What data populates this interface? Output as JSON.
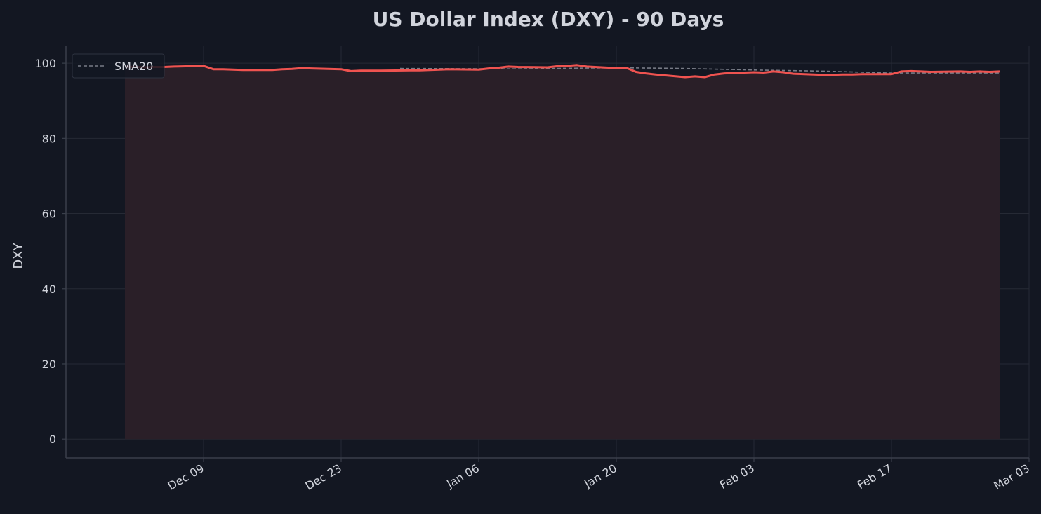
{
  "chart_data": {
    "type": "line",
    "title": "US Dollar Index (DXY) - 90 Days",
    "xlabel": "",
    "ylabel": "DXY",
    "ylim": [
      -5,
      104.5
    ],
    "yticks": [
      0,
      20,
      40,
      60,
      80,
      100
    ],
    "x_range": [
      "2024-11-25",
      "2025-03-03"
    ],
    "xticks": [
      {
        "date": "2024-12-09",
        "label": "Dec 09"
      },
      {
        "date": "2024-12-23",
        "label": "Dec 23"
      },
      {
        "date": "2025-01-06",
        "label": "Jan 06"
      },
      {
        "date": "2025-01-20",
        "label": "Jan 20"
      },
      {
        "date": "2025-02-03",
        "label": "Feb 03"
      },
      {
        "date": "2025-02-17",
        "label": "Feb 17"
      },
      {
        "date": "2025-03-03",
        "label": "Mar 03"
      }
    ],
    "grid": true,
    "legend_position": "top-left",
    "colors": {
      "background": "#131722",
      "grid": "#262a35",
      "axis": "#3a3f4b",
      "text": "#d1d4dc",
      "price_line": "#ef5350",
      "fill": "#2a1f28",
      "sma_line": "#787b86"
    },
    "series": [
      {
        "name": "",
        "style": "solid",
        "x": [
          "2024-12-01",
          "2024-12-02",
          "2024-12-03",
          "2024-12-04",
          "2024-12-05",
          "2024-12-06",
          "2024-12-09",
          "2024-12-10",
          "2024-12-11",
          "2024-12-12",
          "2024-12-13",
          "2024-12-16",
          "2024-12-17",
          "2024-12-18",
          "2024-12-19",
          "2024-12-20",
          "2024-12-23",
          "2024-12-24",
          "2024-12-25",
          "2024-12-26",
          "2024-12-27",
          "2024-12-30",
          "2024-12-31",
          "2025-01-01",
          "2025-01-02",
          "2025-01-03",
          "2025-01-06",
          "2025-01-07",
          "2025-01-08",
          "2025-01-09",
          "2025-01-10",
          "2025-01-13",
          "2025-01-14",
          "2025-01-15",
          "2025-01-16",
          "2025-01-17",
          "2025-01-20",
          "2025-01-21",
          "2025-01-22",
          "2025-01-23",
          "2025-01-24",
          "2025-01-27",
          "2025-01-28",
          "2025-01-29",
          "2025-01-30",
          "2025-01-31",
          "2025-02-03",
          "2025-02-04",
          "2025-02-05",
          "2025-02-06",
          "2025-02-07",
          "2025-02-10",
          "2025-02-11",
          "2025-02-12",
          "2025-02-13",
          "2025-02-14",
          "2025-02-17",
          "2025-02-18",
          "2025-02-19",
          "2025-02-20",
          "2025-02-21",
          "2025-02-24",
          "2025-02-25",
          "2025-02-26",
          "2025-02-27",
          "2025-02-28"
        ],
        "values": [
          99.1,
          99.0,
          98.9,
          99.0,
          99.0,
          99.1,
          99.3,
          98.4,
          98.4,
          98.3,
          98.2,
          98.2,
          98.4,
          98.5,
          98.7,
          98.6,
          98.4,
          97.9,
          98.0,
          98.0,
          98.0,
          98.1,
          98.1,
          98.2,
          98.3,
          98.4,
          98.3,
          98.6,
          98.8,
          99.1,
          99.0,
          98.9,
          99.2,
          99.3,
          99.5,
          99.1,
          98.7,
          98.8,
          97.7,
          97.3,
          97.0,
          96.3,
          96.5,
          96.3,
          97.0,
          97.3,
          97.6,
          97.5,
          97.8,
          97.6,
          97.2,
          96.9,
          96.9,
          97.0,
          97.0,
          97.1,
          97.1,
          97.8,
          97.9,
          97.8,
          97.7,
          97.8,
          97.7,
          97.8,
          97.7,
          97.8
        ]
      },
      {
        "name": "SMA20",
        "style": "dashed",
        "x": [
          "2024-12-29",
          "2025-01-10",
          "2025-01-20",
          "2025-01-27",
          "2025-02-03",
          "2025-02-10",
          "2025-02-17",
          "2025-02-28"
        ],
        "values": [
          98.6,
          98.5,
          98.8,
          98.6,
          98.2,
          97.9,
          97.4,
          97.4
        ]
      }
    ]
  }
}
